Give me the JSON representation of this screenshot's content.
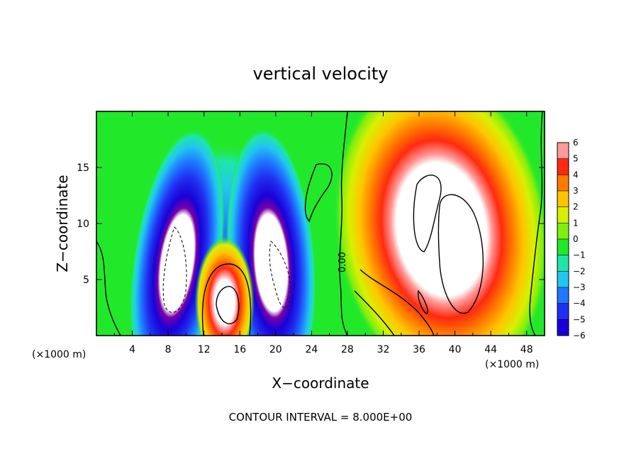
{
  "chart_data": {
    "type": "heatmap",
    "title": "vertical velocity",
    "xlabel": "X−coordinate",
    "ylabel": "Z−coordinate",
    "x_unit": "(×1000 m)",
    "z_unit": "(×1000 m)",
    "xlim": [
      0,
      50
    ],
    "ylim": [
      0,
      20
    ],
    "x_ticks": [
      4,
      8,
      12,
      16,
      20,
      24,
      28,
      32,
      36,
      40,
      44,
      48
    ],
    "y_ticks": [
      5,
      10,
      15
    ],
    "colorbar": {
      "min": -6,
      "max": 6,
      "labels": [
        "6",
        "5",
        "4",
        "3",
        "2",
        "1",
        "0",
        "−1",
        "−2",
        "−3",
        "−4",
        "−5",
        "−6"
      ],
      "colors": {
        "-6": "#7a00a6",
        "-5": "#1a00d8",
        "-4": "#2030f0",
        "-3": "#1f78ff",
        "-2": "#22c6f0",
        "-1": "#1ee6a8",
        "0": "#22e82a",
        "1": "#80ee10",
        "2": "#d8f000",
        "3": "#ffc400",
        "4": "#ff7a00",
        "5": "#ff2a10",
        "6": "#ff9a9a"
      },
      "saturated_color": "#ffffff"
    },
    "features": [
      {
        "type": "updraft",
        "x": 38.5,
        "z": 9.5,
        "peak": 12
      },
      {
        "type": "updraft",
        "x": 14.3,
        "z": 3.0,
        "peak": 9
      },
      {
        "type": "downdraft",
        "x": 9.0,
        "z": 6.5,
        "peak": -12
      },
      {
        "type": "downdraft",
        "x": 19.5,
        "z": 6.5,
        "peak": -12
      }
    ],
    "contour_label": "0.00",
    "contour_interval_text": "CONTOUR INTERVAL = 8.000E+00"
  }
}
